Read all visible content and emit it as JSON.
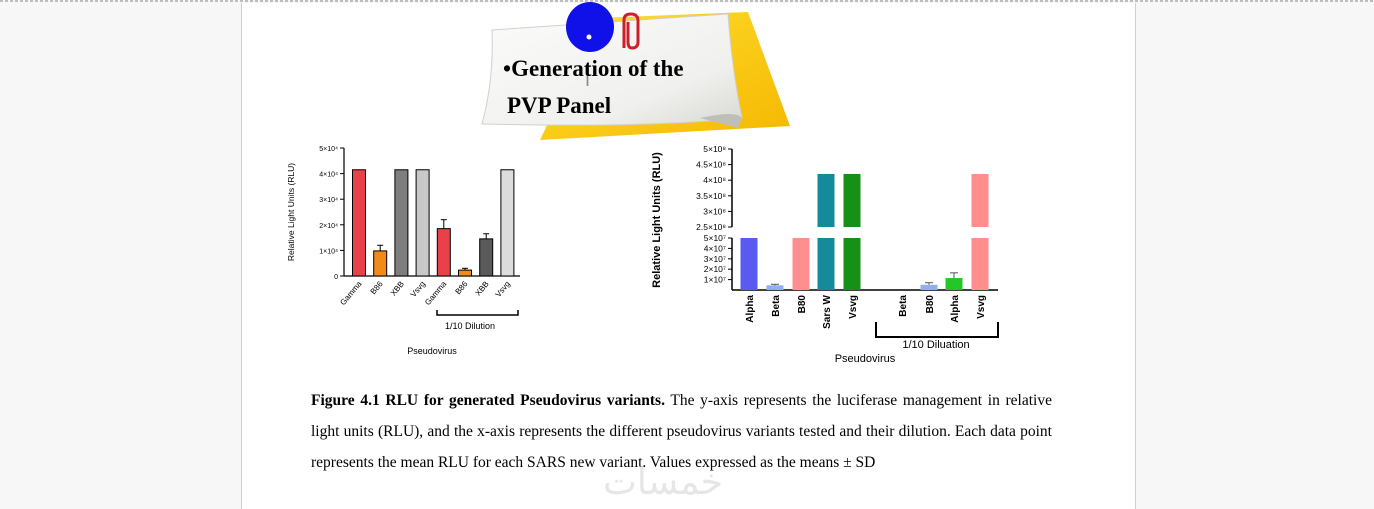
{
  "note": {
    "bullet": "•",
    "line1": "Generation of the",
    "line2": "PVP Panel"
  },
  "chart_data": [
    {
      "type": "bar",
      "ylabel": "Relative Light Units (RLU)",
      "xlabel": "Pseudovirus",
      "yticks": [
        "0",
        "1×10⁴",
        "2×10⁴",
        "3×10⁴",
        "4×10⁴",
        "5×10⁴"
      ],
      "ylim": [
        0,
        50000
      ],
      "categories": [
        "Gamma",
        "B86",
        "XBB",
        "Vsvg",
        "Gamma",
        "B86",
        "XBB",
        "Vsvg"
      ],
      "values": [
        41500,
        9800,
        41500,
        41500,
        18500,
        2300,
        14500,
        41500
      ],
      "errors": [
        0,
        2200,
        0,
        0,
        3500,
        700,
        2000,
        0
      ],
      "colors": [
        "#e8414a",
        "#f08a19",
        "#7e7e7e",
        "#c8c8c8",
        "#e8414a",
        "#f08a19",
        "#5a5a5a",
        "#dcdcdc"
      ],
      "group_label": "1/10 Dilution"
    },
    {
      "type": "bar",
      "ylabel": "Relative Light Units (RLU)",
      "xlabel": "Pseudovirus",
      "yticks_upper": [
        "2.5×10⁸",
        "3×10⁸",
        "3.5×10⁸",
        "4×10⁸",
        "4.5×10⁸",
        "5×10⁸"
      ],
      "yticks_lower": [
        "1×10⁷",
        "2×10⁷",
        "3×10⁷",
        "4×10⁷",
        "5×10⁷"
      ],
      "ylim_lower": [
        0,
        50000000
      ],
      "ylim_upper": [
        250000000,
        500000000
      ],
      "categories": [
        "Alpha",
        "Beta",
        "B80",
        "Sars W",
        "Vsvg",
        "Beta",
        "B80",
        "Alpha",
        "Vsvg"
      ],
      "values": [
        50000000,
        4500000,
        50000000,
        420000000,
        420000000,
        0,
        5000000,
        11500000,
        420000000
      ],
      "errors": [
        0,
        1000000,
        0,
        0,
        0,
        0,
        2000000,
        5000000,
        0
      ],
      "colors": [
        "#5a5af0",
        "#8fb0ec",
        "#ff8e8e",
        "#148a9c",
        "#169016",
        "#8fb0ec",
        "#8fb0ec",
        "#22c82a",
        "#ff8e8e"
      ],
      "group_label": "1/10 Diluation"
    }
  ],
  "caption": {
    "bold": "Figure 4.1 RLU for generated Pseudovirus variants.",
    "text": " The y-axis represents the luciferase management in relative light units (RLU), and the x-axis represents the different pseudovirus variants tested and their dilution. Each data point represents the mean RLU for each SARS new variant. Values expressed as the means ± SD"
  },
  "watermark": "خمسات"
}
